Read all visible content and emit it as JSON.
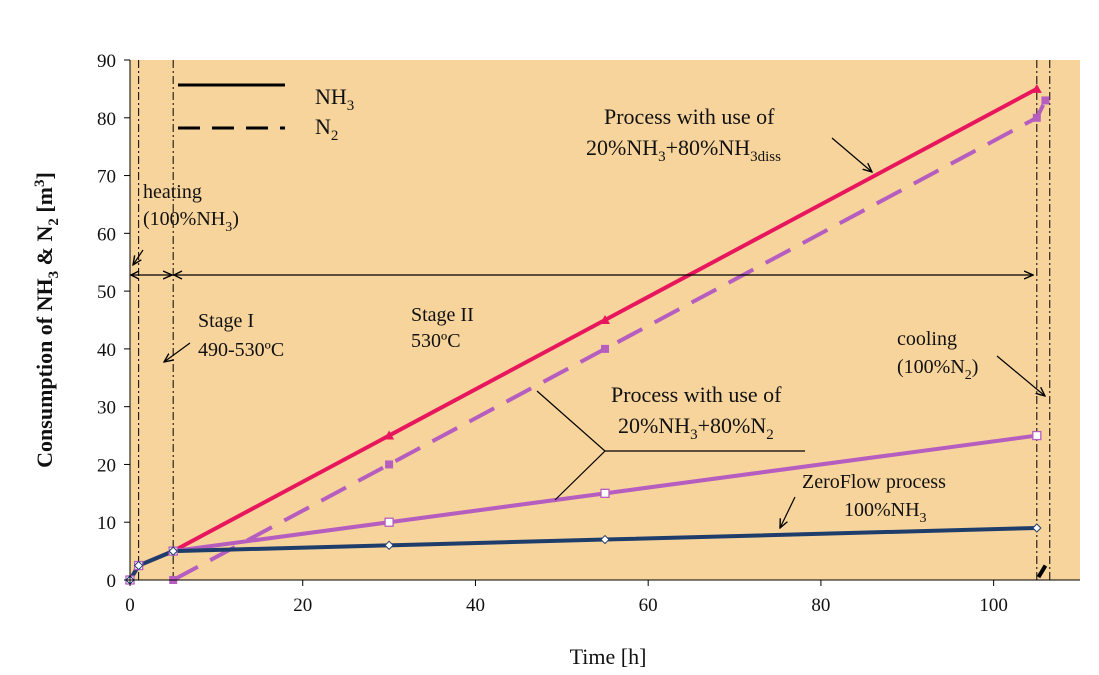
{
  "chart_data": {
    "type": "line",
    "xlabel": "Time [h]",
    "ylabel_parts": [
      "Consumption of NH",
      "3",
      " & N",
      "2",
      " [m",
      "3",
      "]"
    ],
    "xlim": [
      0,
      110
    ],
    "ylim": [
      0,
      90
    ],
    "x_ticks": [
      0,
      20,
      40,
      60,
      80,
      100
    ],
    "y_ticks": [
      0,
      10,
      20,
      30,
      40,
      50,
      60,
      70,
      80,
      90
    ],
    "grid": false,
    "colors": {
      "plot_bg": "#f7d49c",
      "process1": "#e8175d",
      "process2": "#b55ec0",
      "zeroflow": "#1f3d6b",
      "axis": "#000000"
    },
    "legend": {
      "placement": "top-left",
      "entries": [
        {
          "style": "solid",
          "text": "NH",
          "sub": "3"
        },
        {
          "style": "dashed",
          "text": "N",
          "sub": "2"
        }
      ]
    },
    "series": [
      {
        "id": "p1_nh3",
        "style": "solid",
        "color": "#e8175d",
        "marker": "triangle-filled",
        "points": [
          [
            0,
            0
          ],
          [
            1,
            2.5
          ],
          [
            5,
            5
          ],
          [
            30,
            25
          ],
          [
            55,
            45
          ],
          [
            105,
            85
          ]
        ]
      },
      {
        "id": "p1_n2",
        "style": "dashed",
        "color": "#b55ec0",
        "marker": "square-filled",
        "points": [
          [
            5,
            0
          ],
          [
            30,
            20
          ],
          [
            55,
            40
          ],
          [
            105,
            80
          ],
          [
            106,
            83
          ]
        ]
      },
      {
        "id": "p2",
        "style": "solid",
        "color": "#b55ec0",
        "marker": "square-open",
        "points": [
          [
            0,
            0
          ],
          [
            1,
            2.5
          ],
          [
            5,
            5
          ],
          [
            30,
            10
          ],
          [
            55,
            15
          ],
          [
            105,
            25
          ]
        ]
      },
      {
        "id": "zeroflow",
        "style": "solid",
        "color": "#1f3d6b",
        "marker": "diamond-open",
        "points": [
          [
            0,
            0
          ],
          [
            1,
            2.5
          ],
          [
            5,
            5
          ],
          [
            30,
            6
          ],
          [
            55,
            7
          ],
          [
            105,
            9
          ]
        ]
      },
      {
        "id": "cool_n2",
        "style": "solid",
        "color": "#000000",
        "marker": "none",
        "points": [
          [
            105.2,
            0.5
          ],
          [
            106,
            2.5
          ]
        ]
      }
    ],
    "vlines": [
      1,
      5,
      105,
      106.5
    ],
    "annotations": {
      "heating": {
        "line1": "heating",
        "line2_pre": "(100%NH",
        "line2_sub": "3",
        "line2_post": ")"
      },
      "stage1": {
        "line1": "Stage I",
        "line2": "490-530ºC"
      },
      "stage2": {
        "line1": "Stage II",
        "line2": "530ºC"
      },
      "cooling": {
        "line1": "cooling",
        "line2_pre": "(100%N",
        "line2_sub": "2",
        "line2_post": ")"
      },
      "process1": {
        "line1": "Process with use of",
        "line2_pre": "20%NH",
        "line2_sub1": "3",
        "line2_mid": "+80%NH",
        "line2_sub2": "3diss"
      },
      "process2": {
        "line1": "Process with use of",
        "line2_pre": "20%NH",
        "line2_sub1": "3",
        "line2_mid": "+80%N",
        "line2_sub2": "2"
      },
      "zeroflow": {
        "line1": "ZeroFlow process",
        "line2_pre": "100%NH",
        "line2_sub": "3"
      }
    }
  }
}
